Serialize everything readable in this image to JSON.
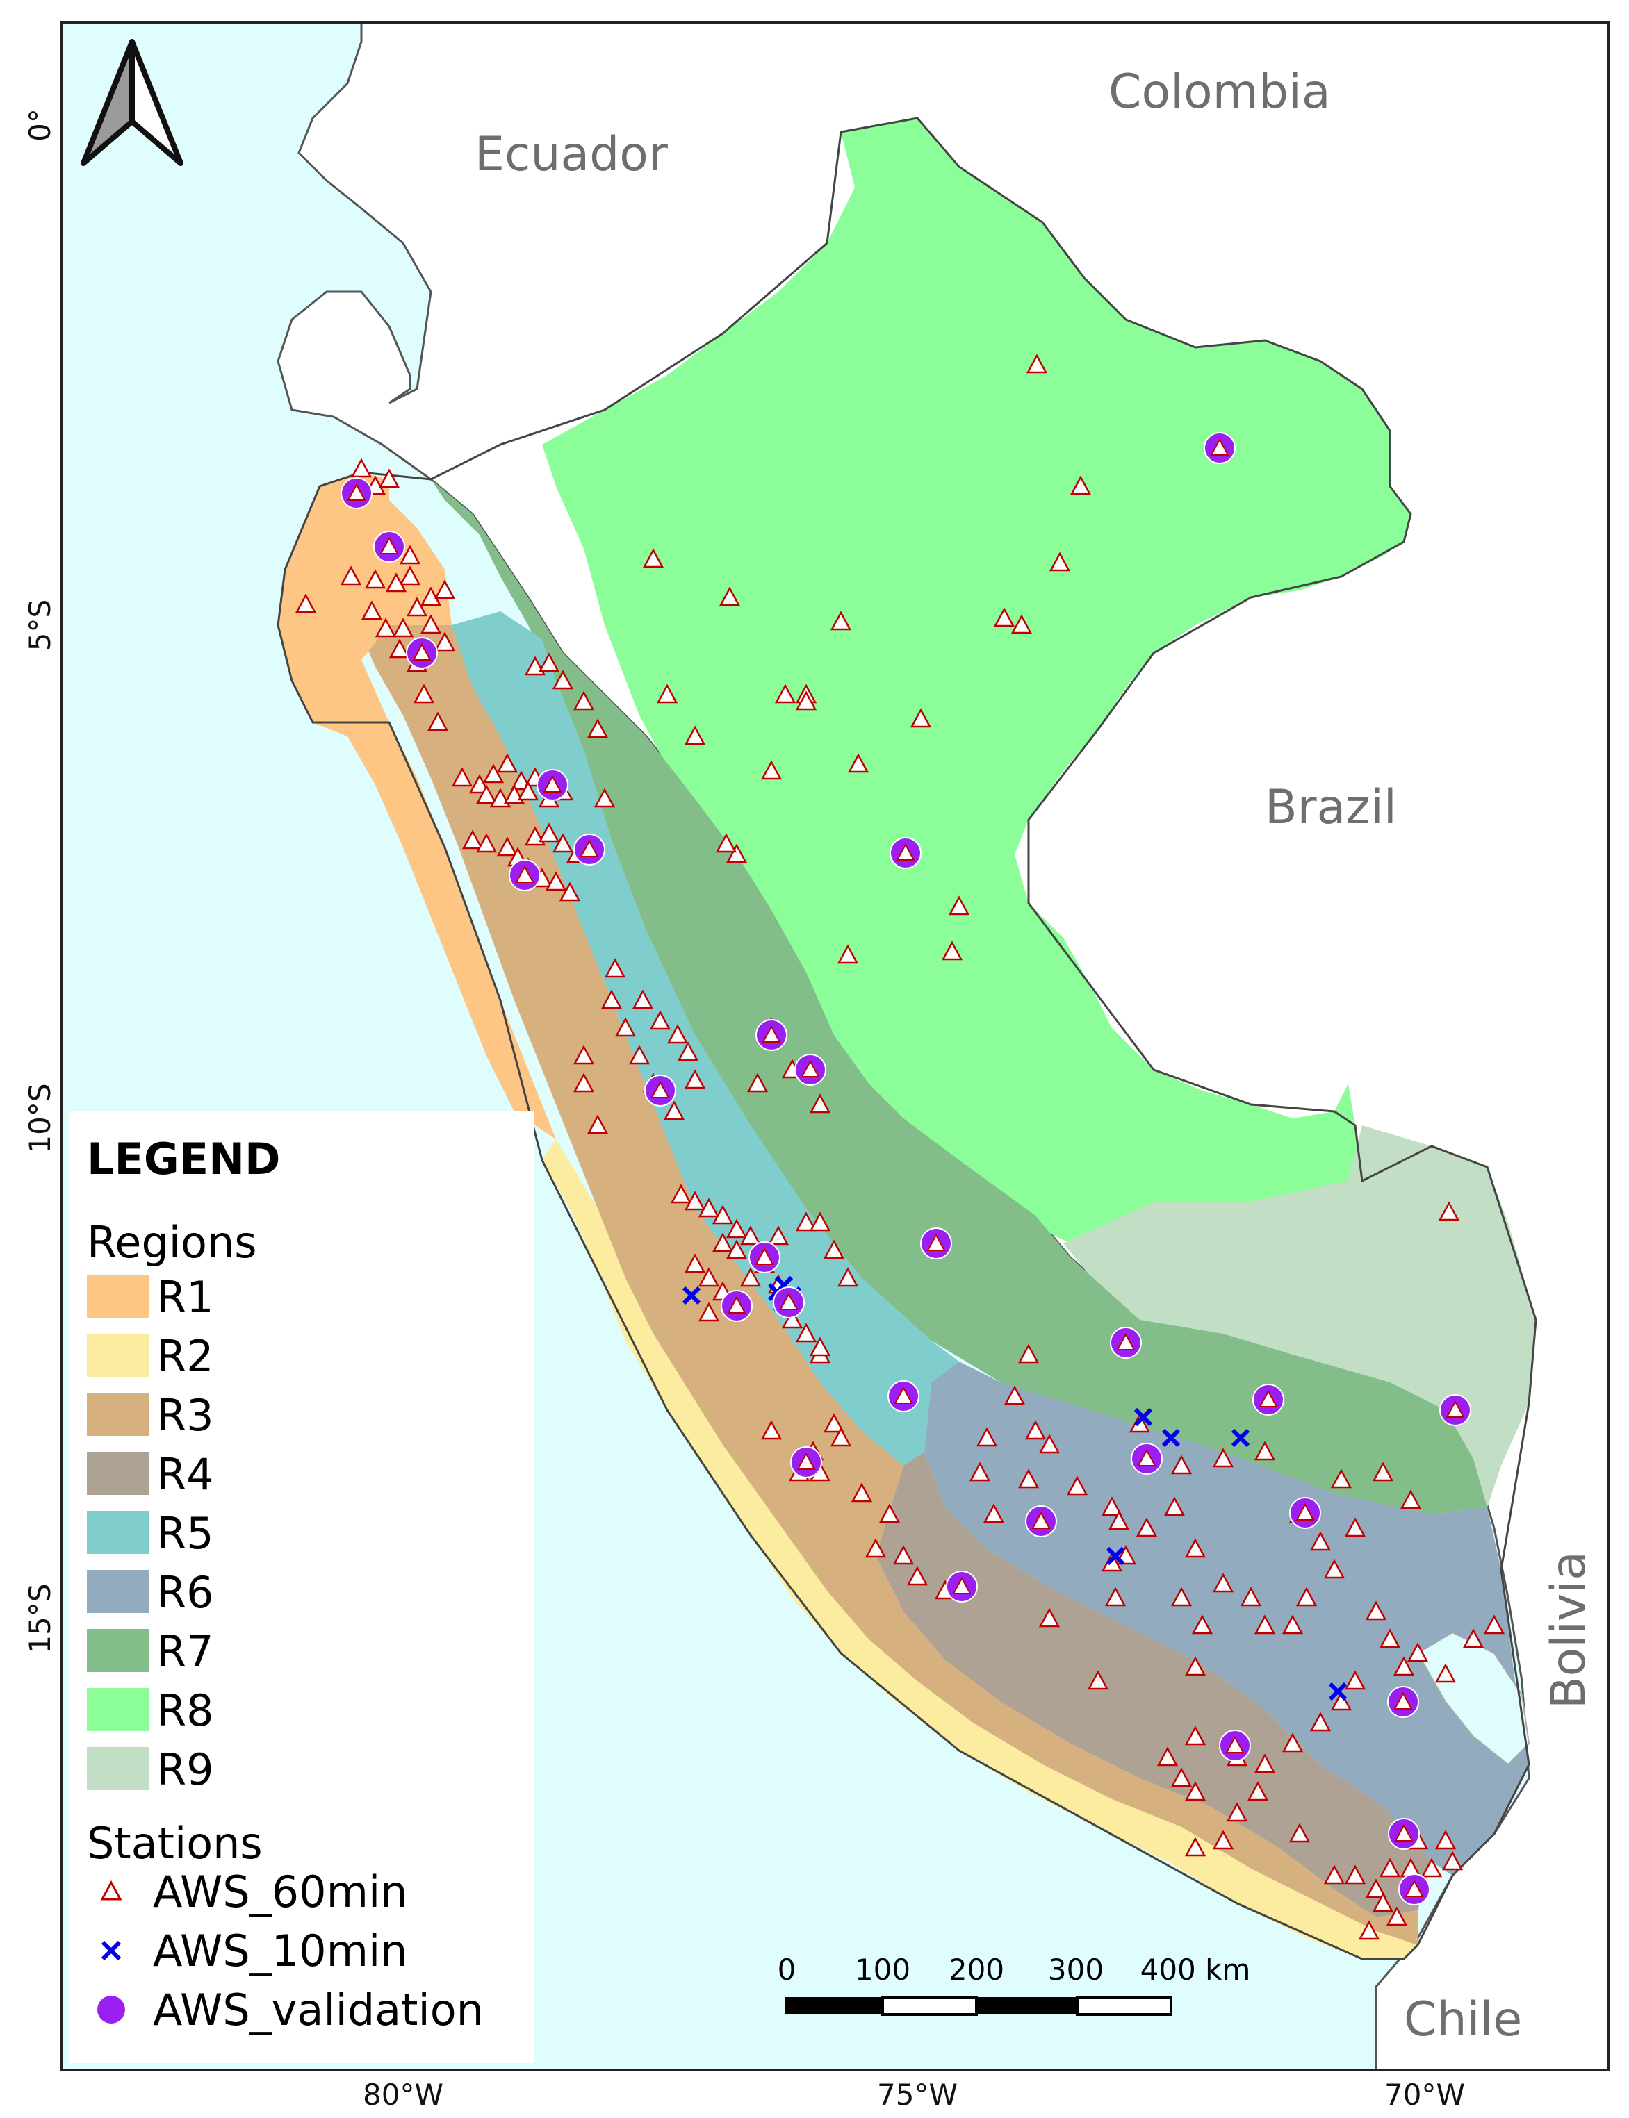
{
  "map": {
    "colors": {
      "ocean": "#dffdfd",
      "land_other": "#ffffff",
      "border": "#555555",
      "frame": "#222222"
    },
    "countries": [
      "Colombia",
      "Ecuador",
      "Brazil",
      "Bolivia",
      "Chile"
    ],
    "lat_labels": [
      "0°",
      "5°S",
      "10°S",
      "15°S"
    ],
    "lon_labels": [
      "80°W",
      "75°W",
      "70°W"
    ],
    "north_arrow": "north-arrow-icon"
  },
  "legend": {
    "title": "LEGEND",
    "regions_heading": "Regions",
    "regions": [
      {
        "label": "R1",
        "color": "#fdc684"
      },
      {
        "label": "R2",
        "color": "#fcec9f"
      },
      {
        "label": "R3",
        "color": "#d6b07f"
      },
      {
        "label": "R4",
        "color": "#ada294"
      },
      {
        "label": "R5",
        "color": "#7fcdcd"
      },
      {
        "label": "R6",
        "color": "#92abbf"
      },
      {
        "label": "R7",
        "color": "#82bd8a"
      },
      {
        "label": "R8",
        "color": "#8cfe99"
      },
      {
        "label": "R9",
        "color": "#c2dfc5"
      }
    ],
    "stations_heading": "Stations",
    "stations": [
      {
        "label": "AWS_60min",
        "symbol": "triangle",
        "color": "#c00000"
      },
      {
        "label": "AWS_10min",
        "symbol": "cross",
        "color": "#0000ee"
      },
      {
        "label": "AWS_validation",
        "symbol": "circle",
        "color": "#9b1ff0"
      }
    ]
  },
  "scale_bar": {
    "ticks": [
      "0",
      "100",
      "200",
      "300",
      "400 km"
    ]
  }
}
